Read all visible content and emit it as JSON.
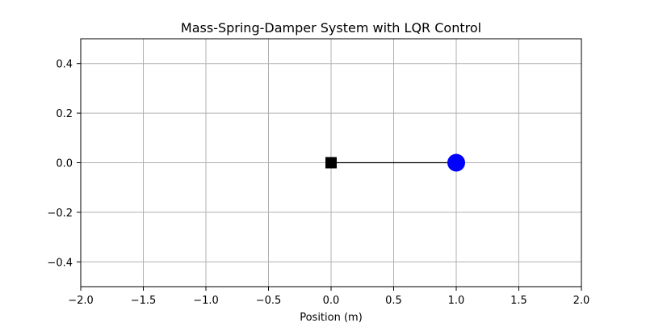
{
  "chart_data": {
    "type": "line",
    "title": "Mass-Spring-Damper System with LQR Control",
    "xlabel": "Position (m)",
    "ylabel": "",
    "xlim": [
      -2.0,
      2.0
    ],
    "ylim": [
      -0.5,
      0.5
    ],
    "grid": true,
    "x_ticks": [
      -2.0,
      -1.5,
      -1.0,
      -0.5,
      0.0,
      0.5,
      1.0,
      1.5,
      2.0
    ],
    "x_tick_labels": [
      "−2.0",
      "−1.5",
      "−1.0",
      "−0.5",
      "0.0",
      "0.5",
      "1.0",
      "1.5",
      "2.0"
    ],
    "y_ticks": [
      -0.4,
      -0.2,
      0.0,
      0.2,
      0.4
    ],
    "y_tick_labels": [
      "−0.4",
      "−0.2",
      "0.0",
      "0.2",
      "0.4"
    ],
    "series": [
      {
        "kind": "spring-line",
        "x": [
          0.0,
          1.0
        ],
        "y": [
          0.0,
          0.0
        ],
        "color": "#000000"
      },
      {
        "kind": "anchor",
        "marker": "square",
        "x": [
          0.0
        ],
        "y": [
          0.0
        ],
        "color": "#000000"
      },
      {
        "kind": "mass",
        "marker": "circle",
        "x": [
          1.0
        ],
        "y": [
          0.0
        ],
        "color": "#0000ff"
      }
    ]
  }
}
